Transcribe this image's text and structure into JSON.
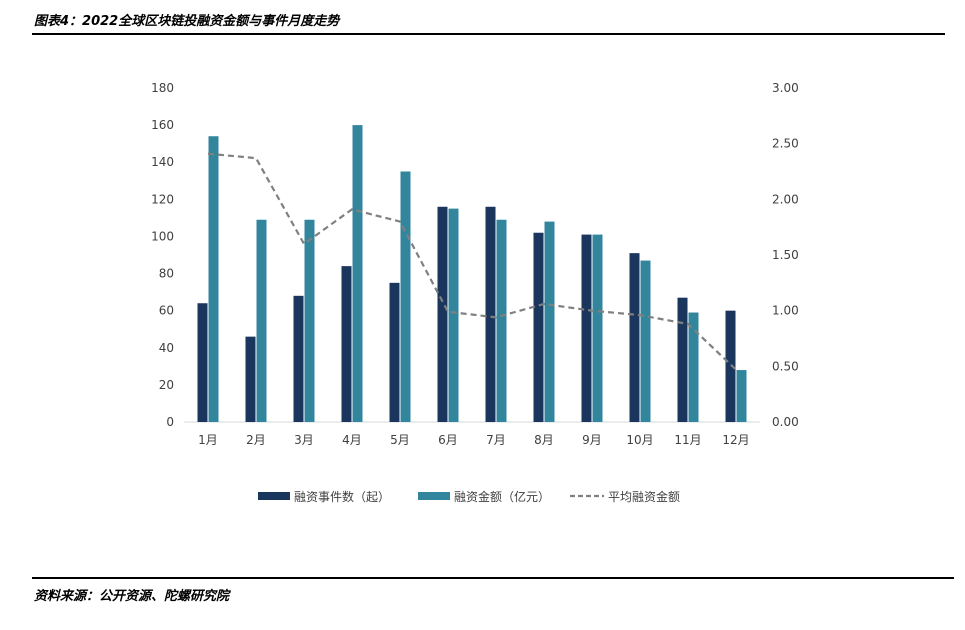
{
  "header": {
    "title": "图表4：2022全球区块链投融资金额与事件月度走势"
  },
  "footer": {
    "source": "资料来源：公开资源、陀螺研究院"
  },
  "chart_data": {
    "type": "bar",
    "categories": [
      "1月",
      "2月",
      "3月",
      "4月",
      "5月",
      "6月",
      "7月",
      "8月",
      "9月",
      "10月",
      "11月",
      "12月"
    ],
    "series": [
      {
        "name": "融资事件数（起）",
        "type": "bar",
        "axis": "left",
        "color": "#1b365d",
        "values": [
          64,
          46,
          68,
          84,
          75,
          116,
          116,
          102,
          101,
          91,
          67,
          60
        ]
      },
      {
        "name": "融资金额（亿元）",
        "type": "bar",
        "axis": "left",
        "color": "#31859c",
        "values": [
          154,
          109,
          109,
          160,
          135,
          115,
          109,
          108,
          101,
          87,
          59,
          28
        ]
      },
      {
        "name": "平均融资金额",
        "type": "line",
        "axis": "right",
        "color": "#808080",
        "values": [
          2.41,
          2.37,
          1.6,
          1.91,
          1.8,
          0.99,
          0.94,
          1.06,
          1.0,
          0.96,
          0.88,
          0.47
        ]
      }
    ],
    "y_left": {
      "min": 0,
      "max": 180,
      "ticks": [
        "0",
        "20",
        "40",
        "60",
        "80",
        "100",
        "120",
        "140",
        "160",
        "180"
      ]
    },
    "y_right": {
      "min": 0,
      "max": 3,
      "ticks": [
        "0.00",
        "0.50",
        "1.00",
        "1.50",
        "2.00",
        "2.50",
        "3.00"
      ]
    },
    "grid": false,
    "legend": "bottom"
  }
}
